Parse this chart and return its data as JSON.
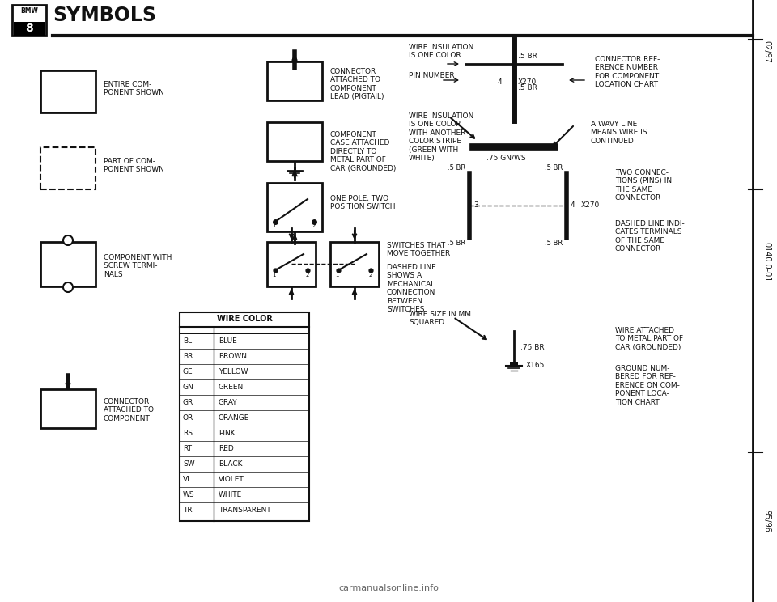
{
  "title": "SYMBOLS",
  "bmw_number": "8",
  "bg": "#ffffff",
  "fg": "#111111",
  "wire_colors": [
    [
      "BL",
      "BLUE"
    ],
    [
      "BR",
      "BROWN"
    ],
    [
      "GE",
      "YELLOW"
    ],
    [
      "GN",
      "GREEN"
    ],
    [
      "GR",
      "GRAY"
    ],
    [
      "OR",
      "ORANGE"
    ],
    [
      "RS",
      "PINK"
    ],
    [
      "RT",
      "RED"
    ],
    [
      "SW",
      "BLACK"
    ],
    [
      "VI",
      "VIOLET"
    ],
    [
      "WS",
      "WHITE"
    ],
    [
      "TR",
      "TRANSPARENT"
    ]
  ],
  "page_right_top": "02/97",
  "page_right_mid": "0140.0-01",
  "page_right_bot": "95/96",
  "watermark": "carmanualsonline.info"
}
